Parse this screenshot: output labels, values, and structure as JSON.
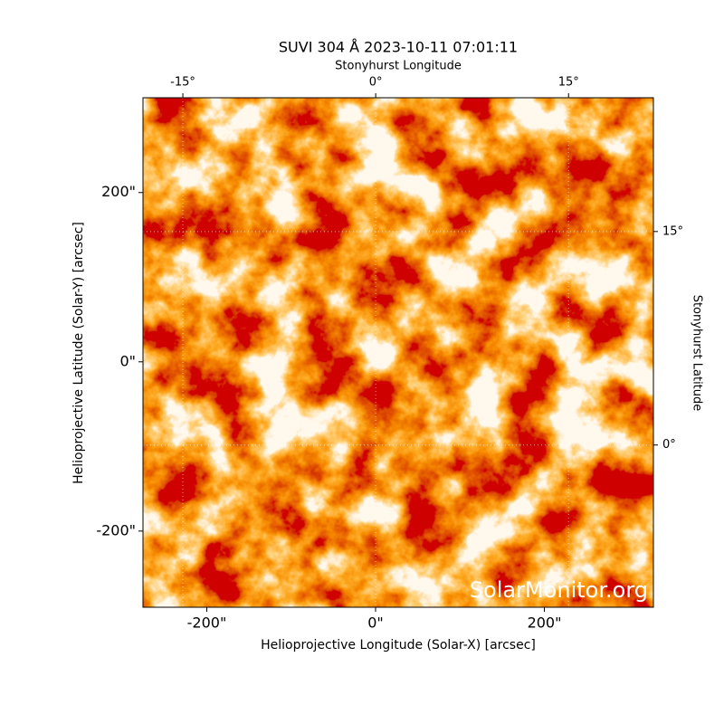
{
  "chart_data": {
    "type": "image",
    "title": "SUVI 304 Å 2023-10-11 07:01:11",
    "xlabel": "Helioprojective Longitude (Solar-X) [arcsec]",
    "ylabel": "Helioprojective Latitude (Solar-Y) [arcsec]",
    "x2label": "Stonyhurst Longitude",
    "y2label": "Stonyhurst Latitude",
    "watermark": "SolarMonitor.org",
    "xlim": [
      -275.6,
      329.2
    ],
    "ylim": [
      -290,
      312
    ],
    "xticks": [
      {
        "value": -200,
        "label": "-200\""
      },
      {
        "value": 0,
        "label": "0\""
      },
      {
        "value": 200,
        "label": "200\""
      }
    ],
    "yticks": [
      {
        "value": -200,
        "label": "-200\""
      },
      {
        "value": 0,
        "label": "0\""
      },
      {
        "value": 200,
        "label": "200\""
      }
    ],
    "x2lim": [
      -18.1,
      21.6
    ],
    "x2ticks": [
      {
        "value": -15,
        "label": "-15°"
      },
      {
        "value": 0,
        "label": "0°"
      },
      {
        "value": 15,
        "label": "15°"
      }
    ],
    "y2lim": [
      -11.4,
      24.4
    ],
    "y2ticks": [
      {
        "value": 0,
        "label": "0°"
      },
      {
        "value": 15,
        "label": "15°"
      }
    ],
    "grid": true
  }
}
